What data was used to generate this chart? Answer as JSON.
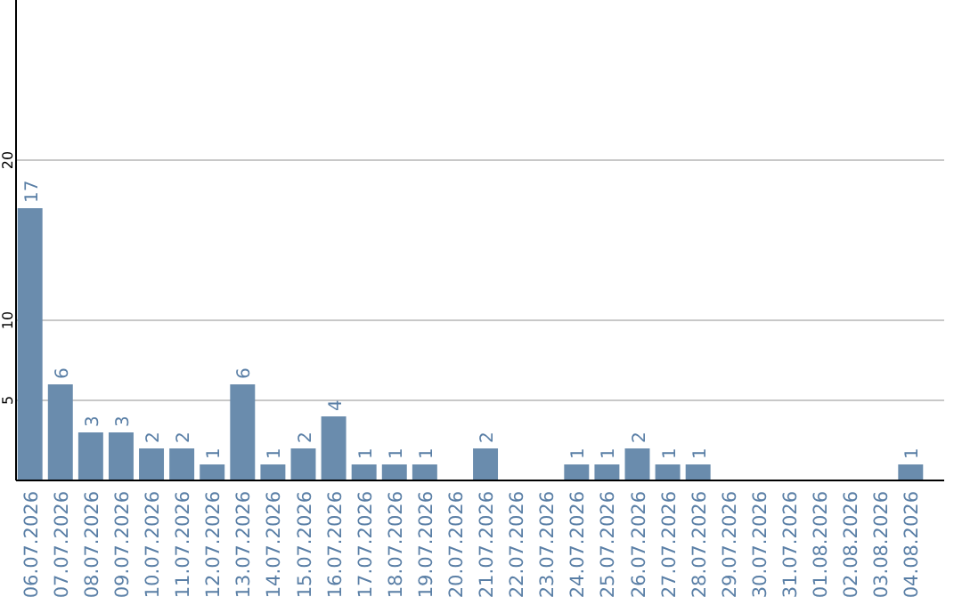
{
  "chart_data": {
    "type": "bar",
    "categories": [
      "06.07.2026",
      "07.07.2026",
      "08.07.2026",
      "09.07.2026",
      "10.07.2026",
      "11.07.2026",
      "12.07.2026",
      "13.07.2026",
      "14.07.2026",
      "15.07.2026",
      "16.07.2026",
      "17.07.2026",
      "18.07.2026",
      "19.07.2026",
      "20.07.2026",
      "21.07.2026",
      "22.07.2026",
      "23.07.2026",
      "24.07.2026",
      "25.07.2026",
      "26.07.2026",
      "27.07.2026",
      "28.07.2026",
      "29.07.2026",
      "30.07.2026",
      "31.07.2026",
      "01.08.2026",
      "02.08.2026",
      "03.08.2026",
      "04.08.2026"
    ],
    "values": [
      17,
      6,
      3,
      3,
      2,
      2,
      1,
      6,
      1,
      2,
      4,
      1,
      1,
      1,
      0,
      2,
      0,
      0,
      1,
      1,
      2,
      1,
      1,
      0,
      0,
      0,
      0,
      0,
      0,
      1
    ],
    "value_labels": [
      "17",
      "6",
      "3",
      "3",
      "2",
      "2",
      "1",
      "6",
      "1",
      "2",
      "4",
      "1",
      "1",
      "1",
      null,
      "2",
      null,
      null,
      "1",
      "1",
      "2",
      "1",
      "1",
      null,
      null,
      null,
      null,
      null,
      null,
      "1"
    ],
    "color": "#6a8cad",
    "ylim": [
      0,
      30
    ],
    "yticks": [
      5,
      10,
      20
    ],
    "grid": "y"
  }
}
